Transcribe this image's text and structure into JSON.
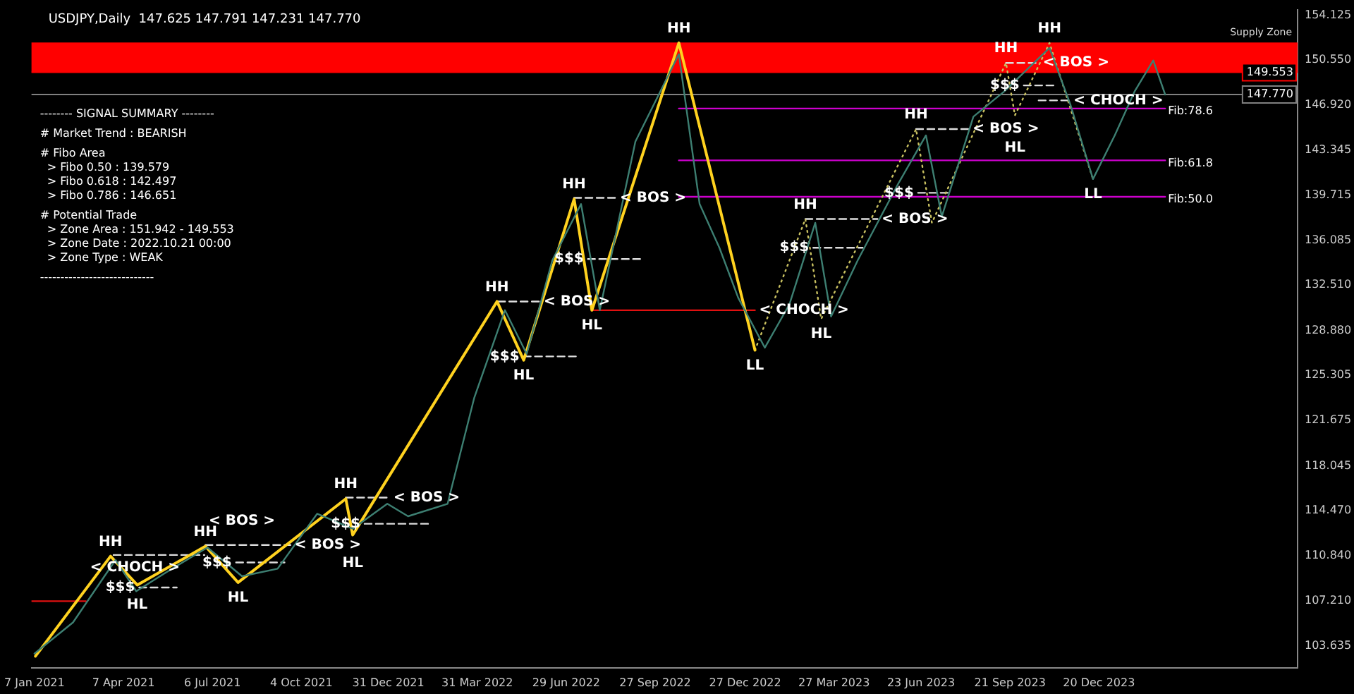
{
  "chart_data": {
    "type": "line",
    "title": "USDJPY,Daily  147.625 147.791 147.231 147.770",
    "xlim": [
      "2021-01-04",
      "2024-07-08"
    ],
    "xticks": [
      {
        "value": "2021-01-07",
        "label": "7 Jan 2021"
      },
      {
        "value": "2021-04-07",
        "label": "7 Apr 2021"
      },
      {
        "value": "2021-07-06",
        "label": "6 Jul 2021"
      },
      {
        "value": "2021-10-04",
        "label": "4 Oct 2021"
      },
      {
        "value": "2021-12-31",
        "label": "31 Dec 2021"
      },
      {
        "value": "2022-03-31",
        "label": "31 Mar 2022"
      },
      {
        "value": "2022-06-29",
        "label": "29 Jun 2022"
      },
      {
        "value": "2022-09-27",
        "label": "27 Sep 2022"
      },
      {
        "value": "2022-12-27",
        "label": "27 Dec 2022"
      },
      {
        "value": "2023-03-27",
        "label": "27 Mar 2023"
      },
      {
        "value": "2023-06-23",
        "label": "23 Jun 2023"
      },
      {
        "value": "2023-09-21",
        "label": "21 Sep 2023"
      },
      {
        "value": "2023-12-20",
        "label": "20 Dec 2023"
      }
    ],
    "ylim": [
      101.87,
      154.57
    ],
    "yticks": [
      154.125,
      {
        "value": 150.55,
        "label": "150.550"
      },
      {
        "value": 146.92,
        "label": "146.920"
      },
      143.345,
      139.715,
      136.085,
      {
        "value": 132.51,
        "label": "132.510"
      },
      {
        "value": 128.88,
        "label": "128.880"
      },
      125.305,
      121.675,
      118.045,
      {
        "value": 114.47,
        "label": "114.470"
      },
      {
        "value": 110.84,
        "label": "110.840"
      },
      {
        "value": 107.21,
        "label": "107.210"
      },
      103.635
    ],
    "grid": false,
    "legend": false,
    "marker": "none",
    "series": [
      {
        "color": "#3d7f72",
        "x": [
          "2021-01-07",
          "2021-02-15",
          "2021-03-30",
          "2021-04-20",
          "2021-05-20",
          "2021-07-01",
          "2021-08-05",
          "2021-09-10",
          "2021-10-20",
          "2021-11-25",
          "2021-12-30",
          "2022-01-20",
          "2022-03-01",
          "2022-03-28",
          "2022-04-28",
          "2022-05-20",
          "2022-06-15",
          "2022-07-14",
          "2022-08-02",
          "2022-09-07",
          "2022-10-21",
          "2022-11-11",
          "2022-12-01",
          "2022-12-20",
          "2023-01-16",
          "2023-02-10",
          "2023-03-08",
          "2023-03-24",
          "2023-04-20",
          "2023-05-30",
          "2023-06-28",
          "2023-07-14",
          "2023-08-15",
          "2023-09-15",
          "2023-10-31",
          "2023-11-21",
          "2023-12-14",
          "2024-01-05",
          "2024-01-25",
          "2024-02-13",
          "2024-02-25"
        ],
        "values": [
          103.0,
          105.5,
          110.5,
          108.0,
          109.5,
          111.5,
          109.2,
          109.8,
          114.2,
          113.0,
          115.0,
          114.0,
          115.0,
          123.5,
          130.5,
          127.0,
          134.5,
          139.0,
          130.5,
          144.0,
          151.0,
          139.0,
          135.5,
          131.5,
          127.5,
          131.0,
          137.5,
          130.0,
          134.5,
          140.5,
          144.5,
          138.0,
          146.0,
          148.0,
          151.5,
          147.0,
          141.0,
          144.5,
          148.0,
          150.5,
          147.77
        ]
      },
      {
        "color": "#ffd21f",
        "x": [
          "2021-01-08",
          "2021-03-25",
          "2021-04-21",
          "2021-06-29",
          "2021-08-01",
          "2021-11-18",
          "2021-11-25",
          "2022-04-20",
          "2022-05-17",
          "2022-07-07",
          "2022-07-25",
          "2022-10-21",
          "2023-01-06"
        ],
        "values": [
          102.8,
          110.8,
          108.5,
          111.6,
          108.7,
          115.4,
          112.5,
          131.2,
          126.5,
          139.4,
          130.5,
          151.9,
          127.3
        ]
      },
      {
        "color": "#c8c060",
        "line_style": "dotted",
        "x": [
          "2023-01-06",
          "2023-02-26",
          "2023-03-14",
          "2023-06-18",
          "2023-07-04",
          "2023-09-17",
          "2023-09-26",
          "2023-10-31",
          "2023-12-14"
        ],
        "values": [
          127.3,
          137.8,
          129.8,
          145.0,
          137.5,
          150.3,
          146.1,
          151.9,
          141.0
        ]
      },
      {
        "color": "#dddddd",
        "line_style": "dashed",
        "x": [
          "2021-03-28",
          "2021-06-28",
          null,
          "2021-04-23",
          "2021-05-31",
          null,
          "2021-06-29",
          "2021-09-23",
          null,
          "2021-07-30",
          "2021-09-17",
          null,
          "2021-11-18",
          "2022-01-01",
          null,
          "2021-12-07",
          "2022-02-10",
          null,
          "2022-04-21",
          "2022-06-02",
          null,
          "2022-05-17",
          "2022-07-12",
          null,
          "2022-07-07",
          "2022-08-18",
          null,
          "2022-07-21",
          "2022-09-15",
          null,
          "2023-02-26",
          "2023-05-10",
          null,
          "2023-03-06",
          "2023-04-25",
          null,
          "2023-06-18",
          "2023-08-10",
          null,
          "2023-06-20",
          "2023-07-20",
          null,
          "2023-09-17",
          "2023-10-20",
          null,
          "2023-10-05",
          "2023-11-05",
          null,
          "2023-10-20",
          "2023-11-20"
        ],
        "values": [
          110.9,
          110.9,
          null,
          108.3,
          108.3,
          null,
          111.7,
          111.7,
          null,
          110.3,
          110.3,
          null,
          115.5,
          115.5,
          null,
          113.4,
          113.4,
          null,
          131.2,
          131.2,
          null,
          126.8,
          126.8,
          null,
          139.5,
          139.5,
          null,
          134.6,
          134.6,
          null,
          137.8,
          137.8,
          null,
          135.5,
          135.5,
          null,
          145.0,
          145.0,
          null,
          139.9,
          139.9,
          null,
          150.3,
          150.3,
          null,
          148.5,
          148.5,
          null,
          147.3,
          147.3
        ]
      },
      {
        "color": "#e01010",
        "x": [
          "2021-01-04",
          "2021-02-28",
          null,
          "2022-07-25",
          "2023-01-06"
        ],
        "values": [
          107.2,
          107.2,
          null,
          130.5,
          130.5
        ]
      },
      {
        "name": "Fib:78.6",
        "color": "#cc00cc",
        "x": [
          "2022-10-21",
          "2024-02-25"
        ],
        "values": [
          146.651,
          146.651
        ]
      },
      {
        "name": "Fib:61.8",
        "color": "#cc00cc",
        "x": [
          "2022-10-21",
          "2024-02-25"
        ],
        "values": [
          142.497,
          142.497
        ]
      },
      {
        "name": "Fib:50.0",
        "color": "#cc00cc",
        "x": [
          "2022-10-21",
          "2024-02-25"
        ],
        "values": [
          139.579,
          139.579
        ]
      }
    ],
    "ref_lines": [
      {
        "axis": "y",
        "value": 147.77,
        "label": "147.770",
        "color": "#808080"
      },
      {
        "axis": "y",
        "value": 149.553,
        "label": "149.553",
        "color": "#ff0000"
      }
    ],
    "bands": [
      {
        "axis": "y",
        "from": 149.553,
        "to": 151.942,
        "label": "Supply Zone",
        "color": "#ff0000"
      }
    ],
    "annotations": [
      "-------- SIGNAL SUMMARY --------",
      "# Market Trend : BEARISH",
      "# Fibo Area",
      "  > Fibo 0.50 : 139.579",
      "  > Fibo 0.618 : 142.497",
      "  > Fibo 0.786 : 146.651",
      "# Potential Trade",
      "  > Zone Area : 151.942 - 149.553",
      "  > Zone Date : 2022.10.21 00:00",
      "  > Zone Type : WEAK",
      "----------------------------",
      {
        "text": "HH",
        "x": "2021-03-25",
        "y": 110.8
      },
      {
        "text": "$$$",
        "x": "2021-04-23",
        "y": 108.3
      },
      {
        "text": "< CHOCH >",
        "x": "2021-02-28",
        "y": 107.2
      },
      {
        "text": "HL",
        "x": "2021-04-21",
        "y": 108.5
      },
      {
        "text": "HH",
        "x": "2021-06-29",
        "y": 111.6
      },
      {
        "text": "$$$",
        "x": "2021-07-30",
        "y": 110.3
      },
      {
        "text": "< BOS >",
        "x": "2021-06-28",
        "y": 110.9
      },
      {
        "text": "HL",
        "x": "2021-08-01",
        "y": 108.7
      },
      {
        "text": "< BOS >",
        "x": "2021-09-23",
        "y": 111.7
      },
      {
        "text": "HH",
        "x": "2021-11-18",
        "y": 115.4
      },
      {
        "text": "$$$",
        "x": "2021-12-07",
        "y": 113.4
      },
      {
        "text": "HL",
        "x": "2021-11-25",
        "y": 112.5
      },
      {
        "text": "< BOS >",
        "x": "2022-01-01",
        "y": 115.5
      },
      {
        "text": "HH",
        "x": "2022-04-20",
        "y": 131.2
      },
      {
        "text": "< BOS >",
        "x": "2022-06-02",
        "y": 131.2
      },
      {
        "text": "$$$",
        "x": "2022-05-17",
        "y": 126.8
      },
      {
        "text": "HL",
        "x": "2022-05-17",
        "y": 126.5
      },
      {
        "text": "HH",
        "x": "2022-07-07",
        "y": 139.4
      },
      {
        "text": "< BOS >",
        "x": "2022-08-18",
        "y": 139.5
      },
      {
        "text": "$$$",
        "x": "2022-07-21",
        "y": 134.6
      },
      {
        "text": "HL",
        "x": "2022-07-25",
        "y": 130.5
      },
      {
        "text": "HH",
        "x": "2022-10-21",
        "y": 151.9
      },
      {
        "text": "< CHOCH >",
        "x": "2023-01-06",
        "y": 130.5
      },
      {
        "text": "LL",
        "x": "2023-01-06",
        "y": 127.3
      },
      {
        "text": "HH",
        "x": "2023-02-26",
        "y": 137.8
      },
      {
        "text": "$$$",
        "x": "2023-03-06",
        "y": 135.5
      },
      {
        "text": "HL",
        "x": "2023-03-14",
        "y": 129.8
      },
      {
        "text": "< BOS >",
        "x": "2023-05-10",
        "y": 137.8
      },
      {
        "text": "$$$",
        "x": "2023-06-20",
        "y": 139.9
      },
      {
        "text": "HH",
        "x": "2023-06-18",
        "y": 145.0
      },
      {
        "text": "< BOS >",
        "x": "2023-08-10",
        "y": 145.0
      },
      {
        "text": "$$$",
        "x": "2023-10-05",
        "y": 148.5
      },
      {
        "text": "HL",
        "x": "2023-09-26",
        "y": 146.1
      },
      {
        "text": "HH",
        "x": "2023-09-17",
        "y": 150.3
      },
      {
        "text": "< BOS >",
        "x": "2023-10-20",
        "y": 150.3
      },
      {
        "text": "HH",
        "x": "2023-10-31",
        "y": 151.9
      },
      {
        "text": "< CHOCH >",
        "x": "2023-11-20",
        "y": 147.3
      },
      {
        "text": "LL",
        "x": "2023-12-14",
        "y": 141.0
      }
    ]
  }
}
